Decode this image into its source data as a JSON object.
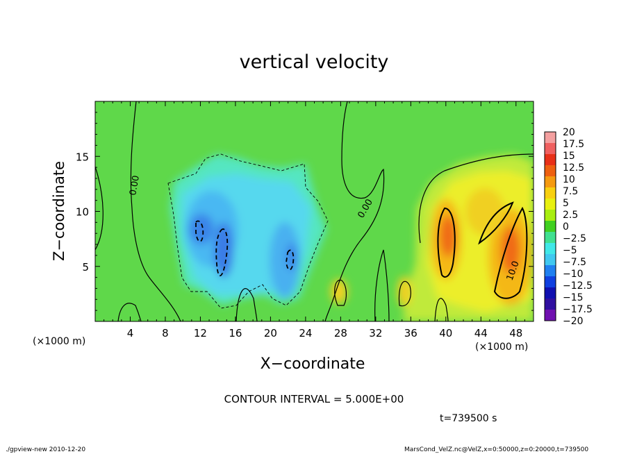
{
  "title": "vertical velocity",
  "xlabel": "X−coordinate",
  "ylabel": "Z−coordinate",
  "x_unit_left": "(×1000 m)",
  "x_unit_right": "(×1000 m)",
  "contour_interval": "CONTOUR INTERVAL = 5.000E+00",
  "time_label": "t=739500 s",
  "footer_left": "./gpview-new  2010-12-20",
  "footer_right": "MarsCond_VelZ.nc@VelZ,x=0:50000,z=0:20000,t=739500",
  "chart_data": {
    "type": "heatmap",
    "title": "vertical velocity",
    "xlabel": "X−coordinate",
    "ylabel": "Z−coordinate",
    "xlim": [
      0,
      50
    ],
    "ylim": [
      0,
      20
    ],
    "xticks": [
      4,
      8,
      12,
      16,
      20,
      24,
      28,
      32,
      36,
      40,
      44,
      48
    ],
    "yticks": [
      5,
      10,
      15
    ],
    "grid": false,
    "colorbar": {
      "levels": [
        "20",
        "17.5",
        "15",
        "12.5",
        "10",
        "7.5",
        "5",
        "2.5",
        "0",
        "−2.5",
        "−5",
        "−7.5",
        "−10",
        "−12.5",
        "−15",
        "−17.5",
        "−20"
      ],
      "colors": [
        "#f4a0a0",
        "#f06060",
        "#e83018",
        "#ee6010",
        "#f59a10",
        "#f8d010",
        "#e8f010",
        "#a8ee10",
        "#40d020",
        "#40e090",
        "#40e8e8",
        "#40c8f0",
        "#2080f0",
        "#1040e0",
        "#1010b0",
        "#3010a0",
        "#7010b0"
      ]
    },
    "contour_interval": 5.0,
    "contour_labels": [
      "0.00",
      "0.00",
      "10.0"
    ]
  }
}
